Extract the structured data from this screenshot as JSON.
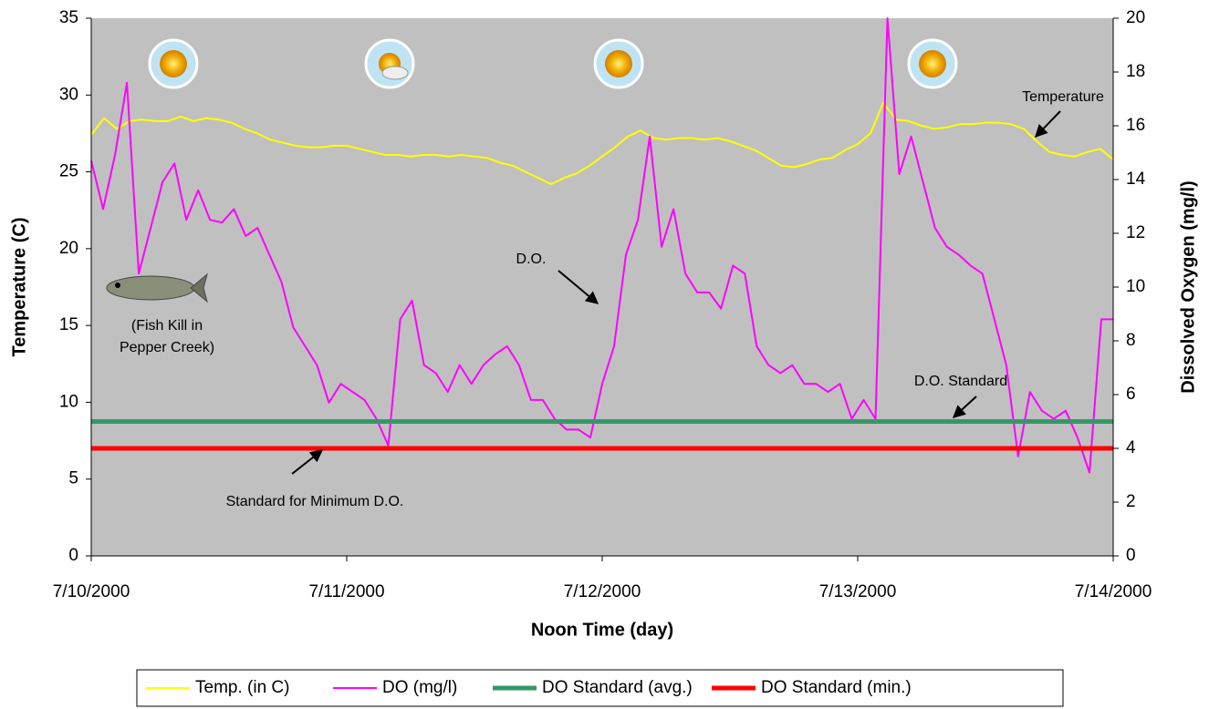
{
  "chart_data": {
    "type": "line",
    "x_label": "Noon Time (day)",
    "y_label": "Temperature (C)",
    "y2_label": "Dissolved Oxygen (mg/l)",
    "xticks": [
      "7/10/2000",
      "7/11/2000",
      "7/12/2000",
      "7/13/2000",
      "7/14/2000"
    ],
    "ylim": [
      0,
      35
    ],
    "yticks": [
      0,
      5,
      10,
      15,
      20,
      25,
      30,
      35
    ],
    "y2lim": [
      0,
      20
    ],
    "y2ticks": [
      0,
      2,
      4,
      6,
      8,
      10,
      12,
      14,
      16,
      18,
      20
    ],
    "background": "#c0c0c0",
    "series": [
      {
        "name": "Temp. (in C)",
        "color": "#ffff00",
        "axis": "y",
        "width": 2,
        "values": [
          27.4,
          28.5,
          27.8,
          28.3,
          28.4,
          28.3,
          28.3,
          28.6,
          28.3,
          28.5,
          28.4,
          28.2,
          27.8,
          27.5,
          27.1,
          26.9,
          26.7,
          26.6,
          26.6,
          26.7,
          26.7,
          26.5,
          26.3,
          26.1,
          26.1,
          26.0,
          26.1,
          26.1,
          26.0,
          26.1,
          26.0,
          25.9,
          25.6,
          25.4,
          25.0,
          24.6,
          24.2,
          24.6,
          24.9,
          25.4,
          26.0,
          26.6,
          27.3,
          27.7,
          27.2,
          27.1,
          27.2,
          27.2,
          27.1,
          27.2,
          27.0,
          26.7,
          26.4,
          25.9,
          25.4,
          25.3,
          25.5,
          25.8,
          25.9,
          26.4,
          26.8,
          27.5,
          29.5,
          28.4,
          28.3,
          28.0,
          27.8,
          27.9,
          28.1,
          28.1,
          28.2,
          28.2,
          28.1,
          27.8,
          27.0,
          26.3,
          26.1,
          26.0,
          26.3,
          26.5,
          25.8
        ]
      },
      {
        "name": "DO (mg/l)",
        "color": "#ff00ff",
        "axis": "y2",
        "width": 2,
        "values": [
          14.7,
          12.9,
          14.9,
          17.6,
          10.5,
          12.2,
          13.9,
          14.6,
          12.5,
          13.6,
          12.5,
          12.4,
          12.9,
          11.9,
          12.2,
          11.2,
          10.2,
          8.5,
          7.8,
          7.1,
          5.7,
          6.4,
          6.1,
          5.8,
          5.1,
          4.1,
          8.8,
          9.5,
          7.1,
          6.8,
          6.1,
          7.1,
          6.4,
          7.1,
          7.5,
          7.8,
          7.1,
          5.8,
          5.8,
          5.1,
          4.7,
          4.7,
          4.4,
          6.4,
          7.8,
          11.2,
          12.5,
          15.6,
          11.5,
          12.9,
          10.5,
          9.8,
          9.8,
          9.2,
          10.8,
          10.5,
          7.8,
          7.1,
          6.8,
          7.1,
          6.4,
          6.4,
          6.1,
          6.4,
          5.1,
          5.8,
          5.1,
          20.0,
          14.2,
          15.6,
          13.9,
          12.2,
          11.5,
          11.2,
          10.8,
          10.5,
          8.8,
          7.1,
          3.7,
          6.1,
          5.4,
          5.1,
          5.4,
          4.4,
          3.1,
          8.8,
          8.8
        ]
      },
      {
        "name": "DO Standard (avg.)",
        "color": "#339966",
        "axis": "y2",
        "width": 5,
        "values": [
          5,
          5
        ]
      },
      {
        "name": "DO Standard (min.)",
        "color": "#ff0000",
        "axis": "y2",
        "width": 5,
        "values": [
          4,
          4
        ]
      }
    ],
    "annotations": {
      "temperature": "Temperature",
      "do": "D.O.",
      "fish_kill": [
        "(Fish Kill in",
        "Pepper Creek)"
      ],
      "do_standard": "D.O. Standard",
      "min_standard": "Standard for Minimum D.O."
    }
  }
}
